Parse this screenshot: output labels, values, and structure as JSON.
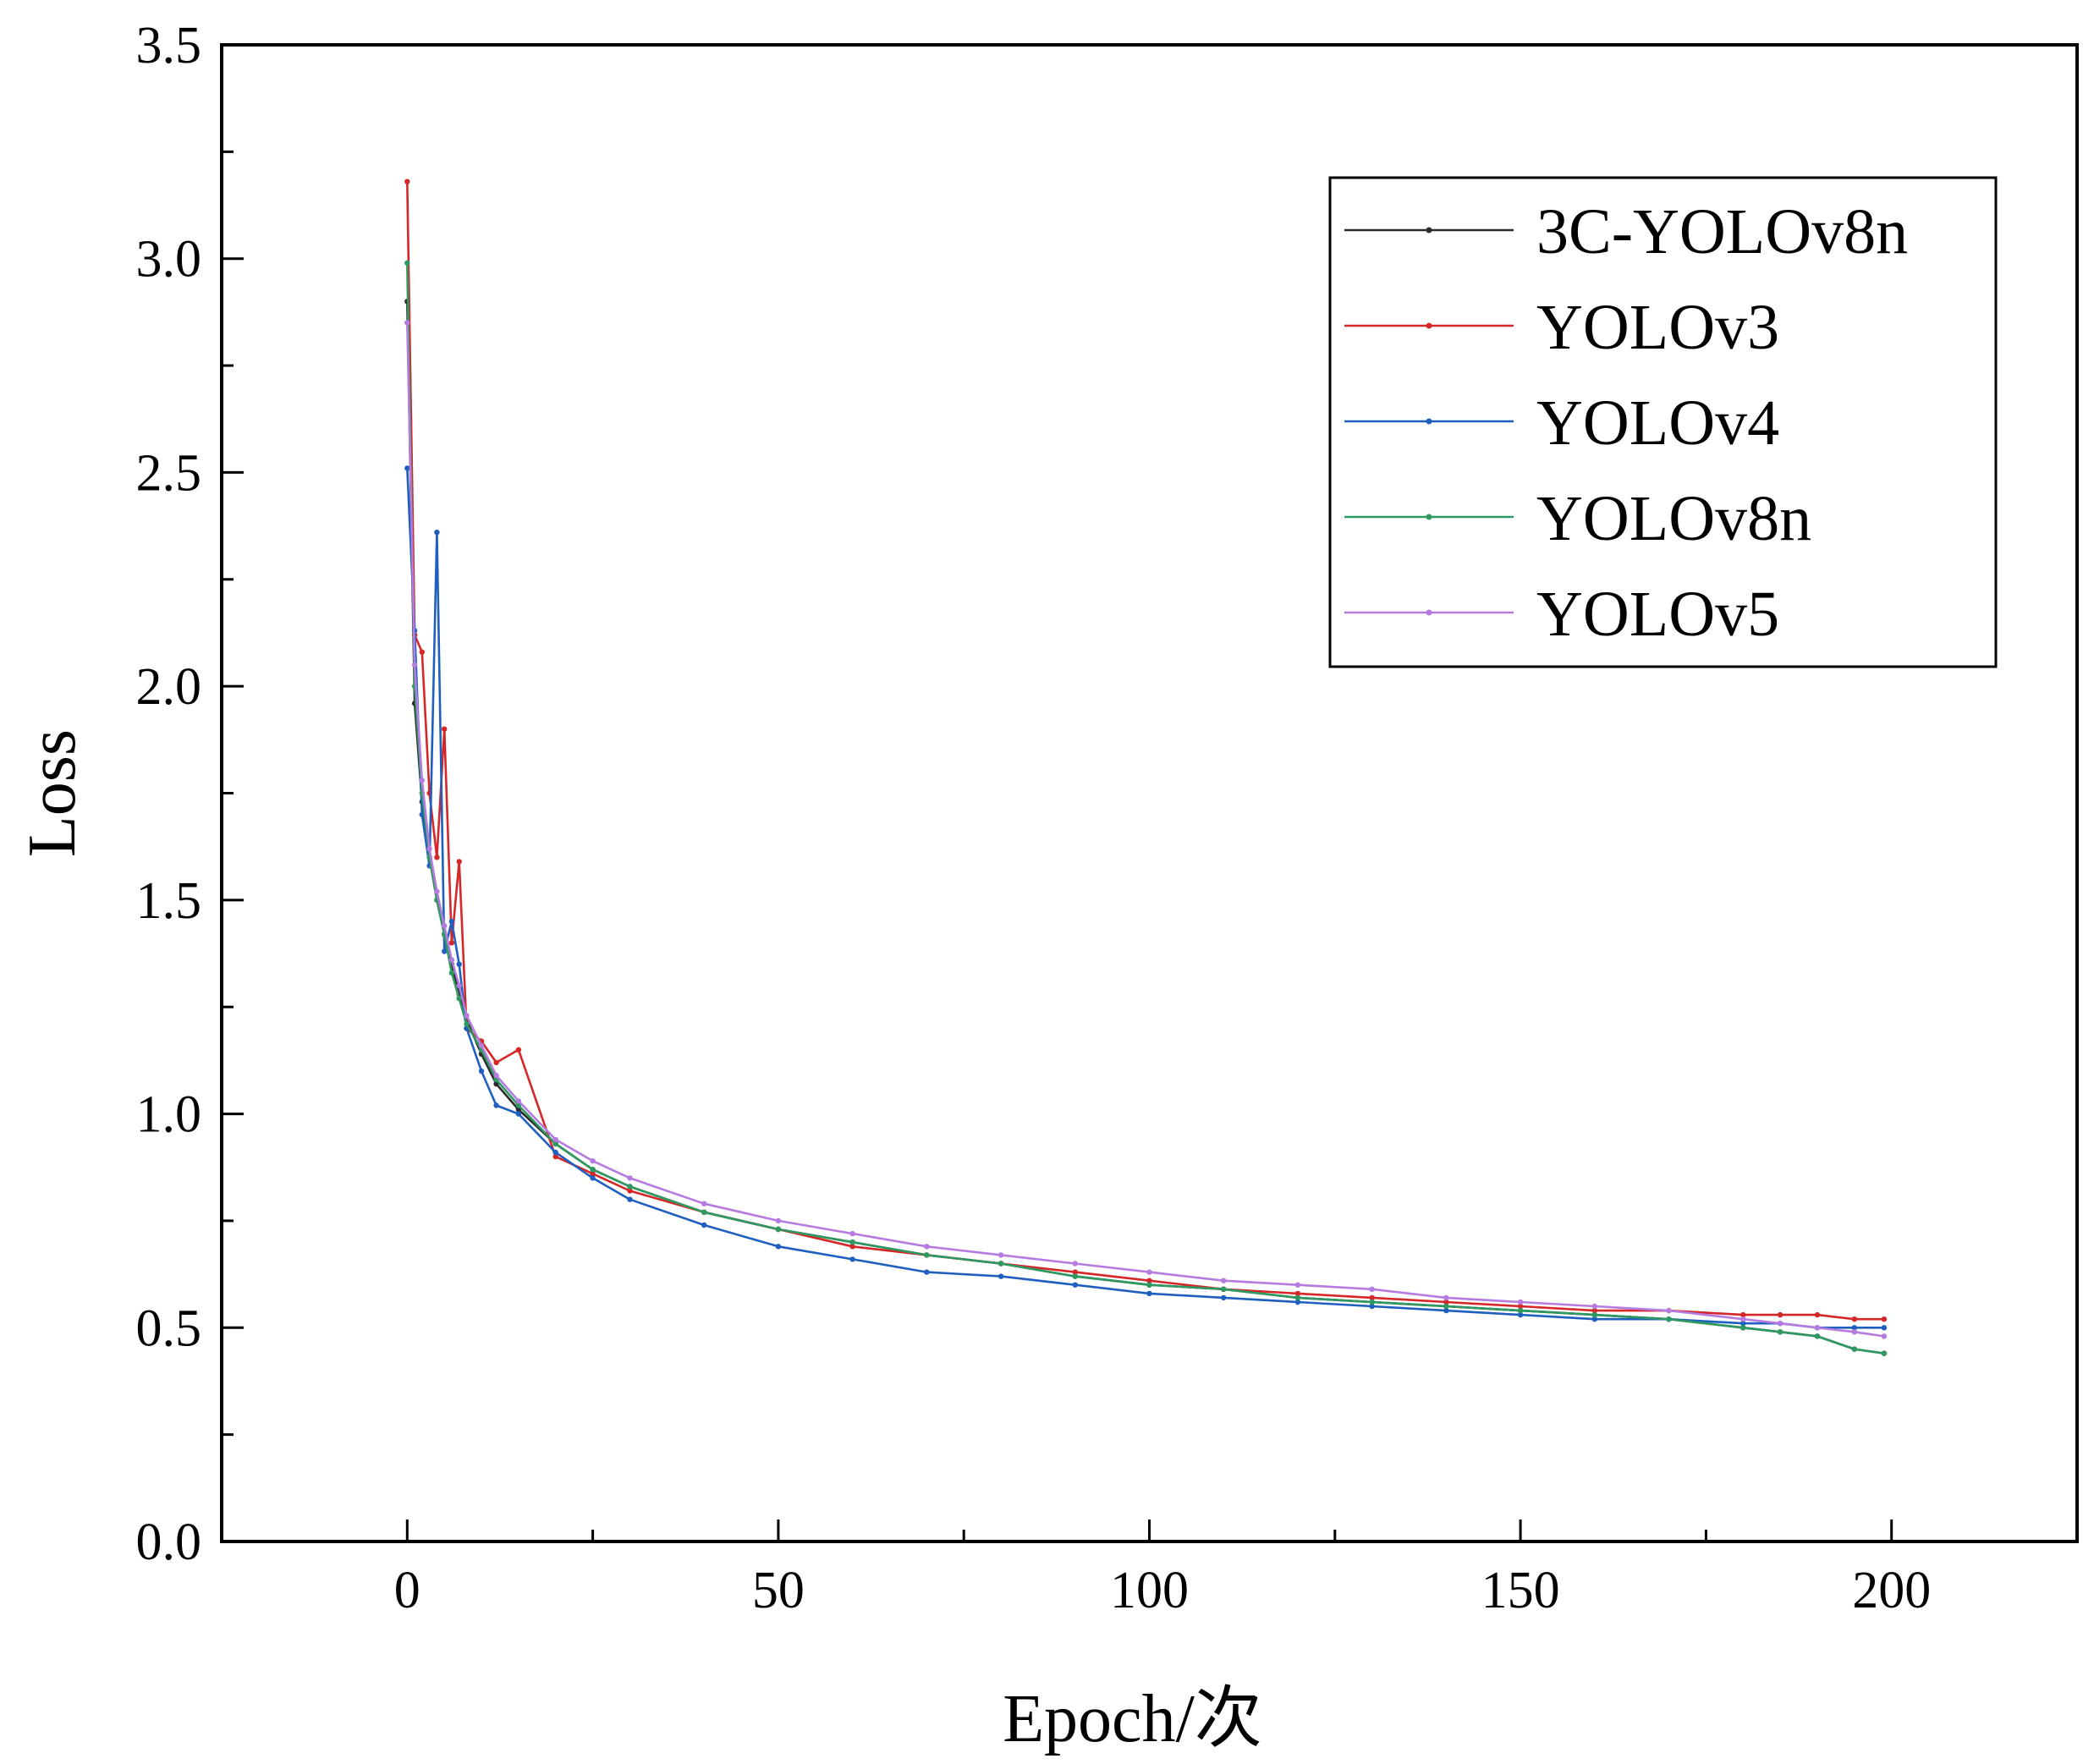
{
  "chart_data": {
    "type": "line",
    "xlabel": "Epoch/次",
    "ylabel": "Loss",
    "xlim": [
      -25,
      225
    ],
    "ylim": [
      0,
      3.5
    ],
    "x_ticks": [
      0,
      50,
      100,
      150,
      200
    ],
    "x_tick_labels": [
      "0",
      "50",
      "100",
      "150",
      "200"
    ],
    "y_ticks": [
      0,
      0.5,
      1.0,
      1.5,
      2.0,
      2.5,
      3.0,
      3.5
    ],
    "y_tick_labels": [
      "0.0",
      "0.5",
      "1.0",
      "1.5",
      "2.0",
      "2.5",
      "3.0",
      "3.5"
    ],
    "grid": false,
    "legend_position": "top-right",
    "x": [
      0,
      1,
      2,
      3,
      4,
      5,
      6,
      7,
      8,
      10,
      12,
      15,
      20,
      25,
      30,
      40,
      50,
      60,
      70,
      80,
      90,
      100,
      110,
      120,
      130,
      140,
      150,
      160,
      170,
      180,
      185,
      190,
      195,
      199
    ],
    "series": [
      {
        "name": "3C-YOLOv8n",
        "color": "#2b2b2b",
        "values": [
          2.9,
          1.96,
          1.73,
          1.6,
          1.5,
          1.42,
          1.35,
          1.28,
          1.22,
          1.14,
          1.07,
          1.01,
          0.93,
          0.87,
          0.83,
          0.77,
          0.73,
          0.7,
          0.67,
          0.65,
          0.62,
          0.6,
          0.59,
          0.57,
          0.56,
          0.55,
          0.54,
          0.53,
          0.52,
          0.5,
          0.49,
          0.48,
          0.45,
          0.44
        ]
      },
      {
        "name": "YOLOv3",
        "color": "#d62728",
        "values": [
          3.18,
          2.12,
          2.08,
          1.75,
          1.6,
          1.9,
          1.4,
          1.59,
          1.2,
          1.17,
          1.12,
          1.15,
          0.9,
          0.86,
          0.82,
          0.77,
          0.73,
          0.69,
          0.67,
          0.65,
          0.63,
          0.61,
          0.59,
          0.58,
          0.57,
          0.56,
          0.55,
          0.54,
          0.54,
          0.53,
          0.53,
          0.53,
          0.52,
          0.52
        ]
      },
      {
        "name": "YOLOv4",
        "color": "#1f5fbf",
        "values": [
          2.51,
          2.13,
          1.7,
          1.58,
          2.36,
          1.38,
          1.45,
          1.35,
          1.2,
          1.1,
          1.02,
          1.0,
          0.91,
          0.85,
          0.8,
          0.74,
          0.69,
          0.66,
          0.63,
          0.62,
          0.6,
          0.58,
          0.57,
          0.56,
          0.55,
          0.54,
          0.53,
          0.52,
          0.52,
          0.51,
          0.51,
          0.5,
          0.5,
          0.5
        ]
      },
      {
        "name": "YOLOv8n",
        "color": "#2e9960",
        "values": [
          2.99,
          2.0,
          1.75,
          1.6,
          1.5,
          1.42,
          1.33,
          1.27,
          1.21,
          1.15,
          1.08,
          1.02,
          0.93,
          0.87,
          0.83,
          0.77,
          0.73,
          0.7,
          0.67,
          0.65,
          0.62,
          0.6,
          0.59,
          0.57,
          0.56,
          0.55,
          0.54,
          0.53,
          0.52,
          0.5,
          0.49,
          0.48,
          0.45,
          0.44
        ]
      },
      {
        "name": "YOLOv5",
        "color": "#b57be0",
        "values": [
          2.85,
          2.05,
          1.78,
          1.62,
          1.52,
          1.44,
          1.36,
          1.3,
          1.23,
          1.16,
          1.09,
          1.03,
          0.94,
          0.89,
          0.85,
          0.79,
          0.75,
          0.72,
          0.69,
          0.67,
          0.65,
          0.63,
          0.61,
          0.6,
          0.59,
          0.57,
          0.56,
          0.55,
          0.54,
          0.52,
          0.51,
          0.5,
          0.49,
          0.48
        ]
      }
    ]
  }
}
